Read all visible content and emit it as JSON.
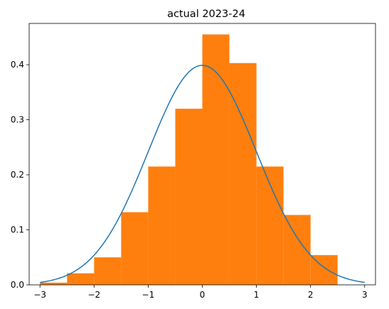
{
  "chart_data": {
    "type": "bar",
    "title": "actual 2023-24",
    "xlabel": "",
    "ylabel": "",
    "xlim": [
      -3.2,
      3.2
    ],
    "ylim": [
      0,
      0.475
    ],
    "grid": false,
    "x_ticks": [
      -3,
      -2,
      -1,
      0,
      1,
      2,
      3
    ],
    "x_tick_labels": [
      "−3",
      "−2",
      "−1",
      "0",
      "1",
      "2",
      "3"
    ],
    "y_ticks": [
      0.0,
      0.1,
      0.2,
      0.3,
      0.4
    ],
    "y_tick_labels": [
      "0.0",
      "0.1",
      "0.2",
      "0.3",
      "0.4"
    ],
    "histogram": {
      "color": "#ff7f0e",
      "bin_edges": [
        -3.0,
        -2.5,
        -2.0,
        -1.5,
        -1.0,
        -0.5,
        0.0,
        0.5,
        1.0,
        1.5,
        2.0,
        2.5
      ],
      "values": [
        0.004,
        0.021,
        0.05,
        0.132,
        0.215,
        0.32,
        0.455,
        0.403,
        0.215,
        0.127,
        0.054
      ]
    },
    "curve": {
      "type": "line",
      "color": "#1f77b4",
      "description_function": "standard normal pdf",
      "x_range": [
        -3,
        3
      ]
    }
  }
}
